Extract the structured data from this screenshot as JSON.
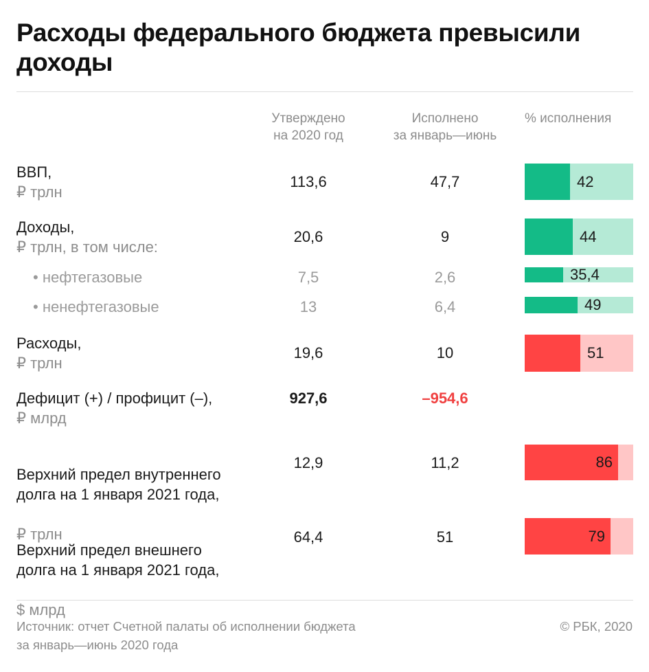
{
  "title": "Расходы федерального бюджета превысили доходы",
  "columns": {
    "approved": "Утверждено\nна 2020 год",
    "executed": "Исполнено\nза январь—июнь",
    "percent": "% исполнения"
  },
  "rows": [
    {
      "label": "ВВП,",
      "unit": "₽ трлн",
      "approved": "113,6",
      "executed": "47,7",
      "percent": "42"
    },
    {
      "label": "Доходы,",
      "unit": "₽ трлн, в том числе:",
      "approved": "20,6",
      "executed": "9",
      "percent": "44"
    },
    {
      "label": "• нефтегазовые",
      "approved": "7,5",
      "executed": "2,6",
      "percent": "35,4"
    },
    {
      "label": "• ненефтегазовые",
      "approved": "13",
      "executed": "6,4",
      "percent": "49"
    },
    {
      "label": "Расходы,",
      "unit": "₽ трлн",
      "approved": "19,6",
      "executed": "10",
      "percent": "51"
    },
    {
      "label": "Дефицит (+) / профицит (–),",
      "unit": "₽ млрд",
      "approved": "927,6",
      "executed": "–954,6"
    },
    {
      "label": "Верхний предел внутреннего\nдолга на 1 января 2021 года,",
      "unit": "₽ трлн",
      "approved": "12,9",
      "executed": "11,2",
      "percent": "86"
    },
    {
      "label": "Верхний предел внешнего\nдолга на 1 января 2021 года,",
      "unit": "$ млрд",
      "approved": "64,4",
      "executed": "51",
      "percent": "79"
    }
  ],
  "chart_data": {
    "type": "table",
    "columns": [
      "Утверждено на 2020 год",
      "Исполнено за январь—июнь",
      "% исполнения"
    ],
    "rows": [
      {
        "name": "ВВП, ₽ трлн",
        "approved": 113.6,
        "executed": 47.7,
        "percent": 42,
        "bar_color": "green"
      },
      {
        "name": "Доходы, ₽ трлн, в том числе:",
        "approved": 20.6,
        "executed": 9,
        "percent": 44,
        "bar_color": "green"
      },
      {
        "name": "нефтегазовые",
        "approved": 7.5,
        "executed": 2.6,
        "percent": 35.4,
        "bar_color": "green"
      },
      {
        "name": "ненефтегазовые",
        "approved": 13,
        "executed": 6.4,
        "percent": 49,
        "bar_color": "green"
      },
      {
        "name": "Расходы, ₽ трлн",
        "approved": 19.6,
        "executed": 10,
        "percent": 51,
        "bar_color": "red"
      },
      {
        "name": "Дефицит (+) / профицит (–), ₽ млрд",
        "approved": 927.6,
        "executed": -954.6,
        "percent": null
      },
      {
        "name": "Верхний предел внутреннего долга на 1 января 2021 года, ₽ трлн",
        "approved": 12.9,
        "executed": 11.2,
        "percent": 86,
        "bar_color": "red"
      },
      {
        "name": "Верхний предел внешнего долга на 1 января 2021 года, $ млрд",
        "approved": 64.4,
        "executed": 51,
        "percent": 79,
        "bar_color": "red"
      }
    ],
    "colors": {
      "green_fill": "#14bb87",
      "green_track": "#b5ead6",
      "red_fill": "#ff4444",
      "red_track": "#ffc6c6",
      "negative_text": "#f04040"
    }
  },
  "source": "Источник: отчет Счетной палаты об исполнении бюджета\nза январь—июнь 2020 года",
  "copyright": "© РБК, 2020"
}
